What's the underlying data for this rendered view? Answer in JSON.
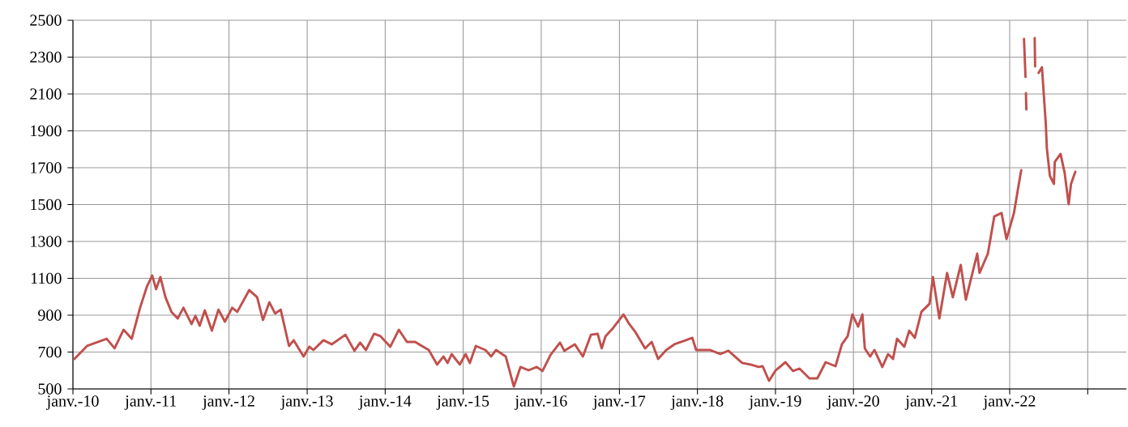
{
  "chart_data": {
    "type": "line",
    "color": "#c0504d",
    "line_style": "solid",
    "marker": "none",
    "grid": true,
    "xlim": [
      "2010-01-01",
      "2023-07-01"
    ],
    "xticks": [
      {
        "value": "2010-01-01",
        "label": "janv.-10"
      },
      {
        "value": "2011-01-01",
        "label": "janv.-11"
      },
      {
        "value": "2012-01-01",
        "label": "janv.-12"
      },
      {
        "value": "2013-01-01",
        "label": "janv.-13"
      },
      {
        "value": "2014-01-01",
        "label": "janv.-14"
      },
      {
        "value": "2015-01-01",
        "label": "janv.-15"
      },
      {
        "value": "2016-01-01",
        "label": "janv.-16"
      },
      {
        "value": "2017-01-01",
        "label": "janv.-17"
      },
      {
        "value": "2018-01-01",
        "label": "janv.-18"
      },
      {
        "value": "2019-01-01",
        "label": "janv.-19"
      },
      {
        "value": "2020-01-01",
        "label": "janv.-20"
      },
      {
        "value": "2021-01-01",
        "label": "janv.-21"
      },
      {
        "value": "2022-01-01",
        "label": "janv.-22"
      },
      {
        "value": "2023-01-01",
        "label": null
      }
    ],
    "ylim": [
      500,
      2500
    ],
    "yticks": [
      500,
      700,
      900,
      1100,
      1300,
      1500,
      1700,
      1900,
      2100,
      2300,
      2500
    ],
    "x": [
      "2010-01-08",
      "2010-03-08",
      "2010-06-08",
      "2010-07-15",
      "2010-08-26",
      "2010-10-03",
      "2010-11-11",
      "2010-12-14",
      "2011-01-07",
      "2011-01-25",
      "2011-02-14",
      "2011-03-10",
      "2011-04-07",
      "2011-05-06",
      "2011-06-02",
      "2011-07-10",
      "2011-07-28",
      "2011-08-17",
      "2011-09-10",
      "2011-10-13",
      "2011-11-13",
      "2011-12-13",
      "2012-01-16",
      "2012-02-09",
      "2012-04-05",
      "2012-05-12",
      "2012-06-08",
      "2012-07-08",
      "2012-08-04",
      "2012-08-30",
      "2012-10-08",
      "2012-10-30",
      "2012-12-15",
      "2013-01-11",
      "2013-01-30",
      "2013-03-18",
      "2013-04-26",
      "2013-06-29",
      "2013-08-10",
      "2013-09-06",
      "2013-10-03",
      "2013-11-10",
      "2013-12-10",
      "2014-01-25",
      "2014-03-06",
      "2014-04-13",
      "2014-05-21",
      "2014-06-28",
      "2014-07-24",
      "2014-09-01",
      "2014-10-01",
      "2014-10-20",
      "2014-11-08",
      "2014-12-16",
      "2015-01-12",
      "2015-02-01",
      "2015-03-01",
      "2015-04-15",
      "2015-05-12",
      "2015-06-04",
      "2015-07-19",
      "2015-08-26",
      "2015-09-26",
      "2015-11-03",
      "2015-12-11",
      "2016-01-07",
      "2016-02-14",
      "2016-03-29",
      "2016-04-18",
      "2016-06-06",
      "2016-07-14",
      "2016-08-21",
      "2016-09-21",
      "2016-10-10",
      "2016-10-28",
      "2016-12-02",
      "2017-01-20",
      "2017-02-16",
      "2017-03-17",
      "2017-05-01",
      "2017-06-01",
      "2017-07-01",
      "2017-08-08",
      "2017-09-15",
      "2017-11-08",
      "2017-12-08",
      "2017-12-26",
      "2018-02-28",
      "2018-04-18",
      "2018-05-26",
      "2018-07-29",
      "2018-09-07",
      "2018-10-14",
      "2018-11-02",
      "2018-12-02",
      "2019-01-02",
      "2019-02-17",
      "2019-03-24",
      "2019-04-24",
      "2019-06-09",
      "2019-07-16",
      "2019-08-24",
      "2019-10-09",
      "2019-11-08",
      "2019-12-05",
      "2019-12-27",
      "2020-01-23",
      "2020-02-12",
      "2020-02-23",
      "2020-03-19",
      "2020-04-08",
      "2020-05-15",
      "2020-06-11",
      "2020-07-04",
      "2020-07-23",
      "2020-08-26",
      "2020-09-18",
      "2020-10-14",
      "2020-11-14",
      "2020-12-22",
      "2021-01-07",
      "2021-02-06",
      "2021-03-14",
      "2021-04-10",
      "2021-05-17",
      "2021-06-10",
      "2021-08-02",
      "2021-08-13",
      "2021-09-21",
      "2021-10-21",
      "2021-11-24",
      "2021-12-17",
      "2022-01-21",
      "2022-02-09",
      "2022-02-24",
      "2022-02-26",
      "2022-03-09",
      "2022-03-16",
      "2022-03-17",
      "2022-03-18",
      "2022-03-20",
      "2022-03-22",
      "2022-04-28",
      "2022-04-30",
      "2022-05-04",
      "2022-05-16",
      "2022-06-01",
      "2022-06-19",
      "2022-06-24",
      "2022-07-08",
      "2022-07-27",
      "2022-07-31",
      "2022-08-27",
      "2022-09-15",
      "2022-10-04",
      "2022-10-15",
      "2022-11-04"
    ],
    "values": [
      663,
      733,
      772,
      720,
      821,
      772,
      940,
      1058,
      1115,
      1041,
      1107,
      997,
      918,
      882,
      940,
      852,
      896,
      843,
      926,
      816,
      930,
      865,
      940,
      918,
      1036,
      997,
      874,
      970,
      909,
      930,
      733,
      764,
      676,
      729,
      711,
      764,
      742,
      794,
      707,
      751,
      711,
      799,
      786,
      729,
      821,
      755,
      755,
      729,
      711,
      632,
      676,
      641,
      689,
      632,
      689,
      641,
      733,
      711,
      676,
      711,
      676,
      513,
      619,
      601,
      619,
      597,
      685,
      751,
      707,
      742,
      676,
      794,
      799,
      720,
      786,
      830,
      904,
      852,
      808,
      720,
      755,
      663,
      711,
      742,
      764,
      777,
      711,
      711,
      689,
      707,
      641,
      632,
      619,
      623,
      544,
      601,
      645,
      597,
      610,
      557,
      557,
      645,
      623,
      742,
      786,
      904,
      838,
      904,
      720,
      676,
      711,
      619,
      689,
      663,
      772,
      729,
      816,
      777,
      918,
      962,
      1107,
      882,
      1129,
      997,
      1173,
      984,
      1234,
      1129,
      1234,
      1436,
      1454,
      1313,
      1454,
      1586,
      1687,
      null,
      2399,
      2192,
      null,
      2104,
      2016,
      null,
      2403,
      2249,
      null,
      2214,
      2245,
      1937,
      1805,
      1656,
      1612,
      1731,
      1775,
      1673,
      1502,
      1612,
      1678
    ]
  }
}
